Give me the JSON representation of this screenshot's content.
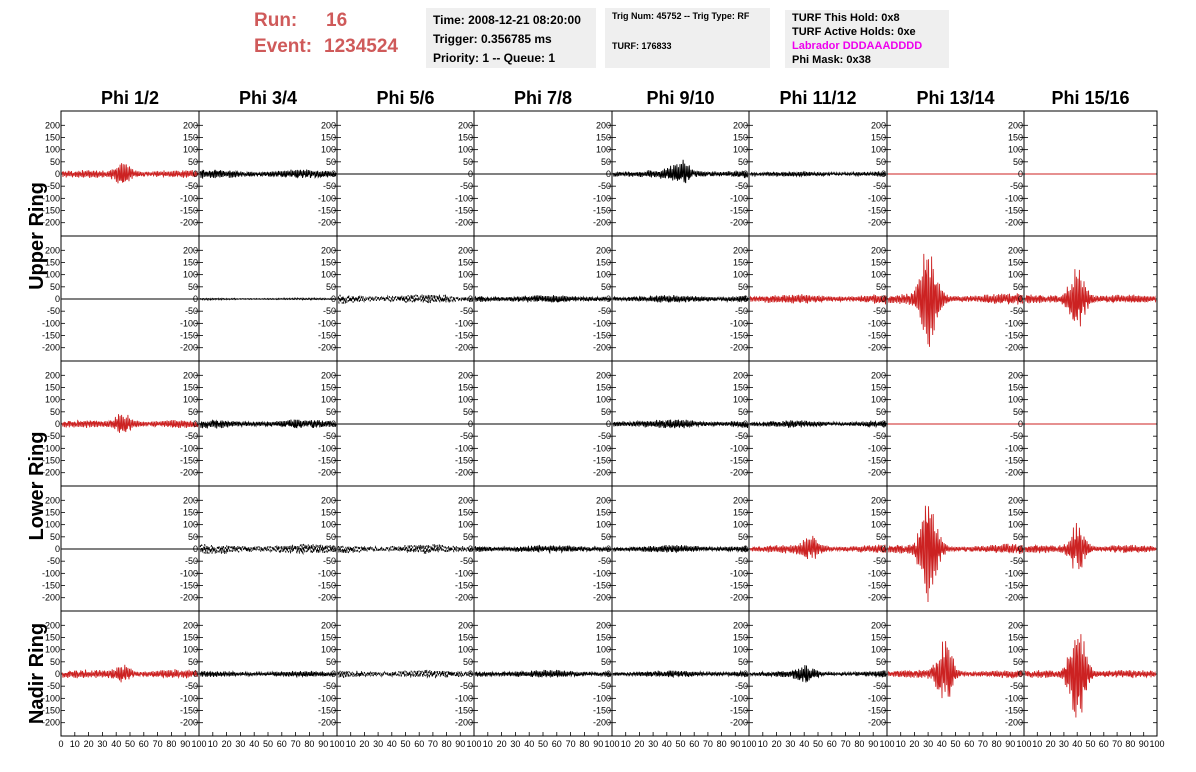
{
  "header": {
    "run_label": "Run:",
    "run_value": "16",
    "event_label": "Event:",
    "event_value": "1234524",
    "time": "Time: 2008-12-21 08:20:00",
    "trigger": "Trigger: 0.356785 ms",
    "priority": "Priority: 1 -- Queue: 1",
    "trig_num": "Trig Num: 45752 -- Trig Type: RF",
    "turf_id": "TURF: 176833",
    "turf_hold": "TURF This Hold: 0x8",
    "turf_active": "TURF Active Holds: 0xe",
    "labrador": "Labrador DDDAAADDDD",
    "phi_mask": "Phi Mask: 0x38"
  },
  "colors": {
    "run_text": "#cf5a5a",
    "labrador_text": "#ee00ee",
    "trace_red": "#cc2222",
    "trace_black": "#000000"
  },
  "chart_data": {
    "type": "line",
    "columns": [
      "Phi 1/2",
      "Phi 3/4",
      "Phi 5/6",
      "Phi 7/8",
      "Phi 9/10",
      "Phi 11/12",
      "Phi 13/14",
      "Phi 15/16"
    ],
    "ring_labels": [
      "Upper Ring",
      "Lower Ring",
      "Nadir Ring"
    ],
    "y_ticks": [
      200,
      150,
      100,
      50,
      0,
      -50,
      -100,
      -150,
      -200
    ],
    "y_range": [
      -230,
      230
    ],
    "x_range": [
      0,
      100
    ],
    "x_tick_labels": [
      "0",
      "10",
      "20",
      "30",
      "40",
      "50",
      "60",
      "70",
      "80",
      "90",
      "100"
    ],
    "panels": [
      [
        {
          "color": "red",
          "amp": 18,
          "burst": 45,
          "peak": 45,
          "style": "solid"
        },
        {
          "color": "black",
          "amp": 20,
          "burst": 0,
          "peak": 0,
          "style": "solid"
        },
        {
          "color": "black",
          "amp": 0,
          "burst": 0,
          "peak": 0,
          "style": "flat"
        },
        {
          "color": "black",
          "amp": 0,
          "burst": 0,
          "peak": 0,
          "style": "flat"
        },
        {
          "color": "black",
          "amp": 22,
          "burst": 45,
          "peak": 50,
          "style": "solid"
        },
        {
          "color": "black",
          "amp": 12,
          "burst": 0,
          "peak": 0,
          "style": "solid"
        },
        {
          "color": "red",
          "amp": 0,
          "burst": 0,
          "peak": 0,
          "style": "flat"
        },
        {
          "color": "red",
          "amp": 0,
          "burst": 0,
          "peak": 0,
          "style": "flat"
        }
      ],
      [
        {
          "color": "black",
          "amp": 0,
          "burst": 0,
          "peak": 0,
          "style": "flat"
        },
        {
          "color": "black",
          "amp": 4,
          "burst": 0,
          "peak": 0,
          "style": "solid"
        },
        {
          "color": "black",
          "amp": 22,
          "burst": 0,
          "peak": 0,
          "style": "dashed"
        },
        {
          "color": "black",
          "amp": 18,
          "burst": 0,
          "peak": 0,
          "style": "solid"
        },
        {
          "color": "black",
          "amp": 18,
          "burst": 0,
          "peak": 0,
          "style": "solid"
        },
        {
          "color": "red",
          "amp": 22,
          "burst": 0,
          "peak": 0,
          "style": "solid"
        },
        {
          "color": "red",
          "amp": 25,
          "burst": 210,
          "peak": 30,
          "style": "solid"
        },
        {
          "color": "red",
          "amp": 20,
          "burst": 130,
          "peak": 40,
          "style": "solid"
        }
      ],
      [
        {
          "color": "red",
          "amp": 18,
          "burst": 40,
          "peak": 45,
          "style": "solid"
        },
        {
          "color": "black",
          "amp": 20,
          "burst": 0,
          "peak": 0,
          "style": "solid"
        },
        {
          "color": "black",
          "amp": 0,
          "burst": 0,
          "peak": 0,
          "style": "flat"
        },
        {
          "color": "black",
          "amp": 0,
          "burst": 0,
          "peak": 0,
          "style": "flat"
        },
        {
          "color": "black",
          "amp": 20,
          "burst": 0,
          "peak": 0,
          "style": "solid"
        },
        {
          "color": "black",
          "amp": 16,
          "burst": 0,
          "peak": 0,
          "style": "solid"
        },
        {
          "color": "red",
          "amp": 0,
          "burst": 0,
          "peak": 0,
          "style": "flat"
        },
        {
          "color": "red",
          "amp": 0,
          "burst": 0,
          "peak": 0,
          "style": "flat"
        }
      ],
      [
        {
          "color": "black",
          "amp": 0,
          "burst": 0,
          "peak": 0,
          "style": "flat"
        },
        {
          "color": "black",
          "amp": 24,
          "burst": 0,
          "peak": 0,
          "style": "dashed"
        },
        {
          "color": "black",
          "amp": 22,
          "burst": 0,
          "peak": 0,
          "style": "dashed"
        },
        {
          "color": "black",
          "amp": 18,
          "burst": 0,
          "peak": 0,
          "style": "solid"
        },
        {
          "color": "black",
          "amp": 18,
          "burst": 0,
          "peak": 0,
          "style": "solid"
        },
        {
          "color": "red",
          "amp": 20,
          "burst": 40,
          "peak": 45,
          "style": "solid"
        },
        {
          "color": "red",
          "amp": 22,
          "burst": 200,
          "peak": 30,
          "style": "solid"
        },
        {
          "color": "red",
          "amp": 18,
          "burst": 100,
          "peak": 40,
          "style": "solid"
        }
      ],
      [
        {
          "color": "red",
          "amp": 20,
          "burst": 30,
          "peak": 45,
          "style": "solid"
        },
        {
          "color": "black",
          "amp": 14,
          "burst": 0,
          "peak": 0,
          "style": "solid"
        },
        {
          "color": "black",
          "amp": 20,
          "burst": 0,
          "peak": 0,
          "style": "dashed"
        },
        {
          "color": "black",
          "amp": 18,
          "burst": 0,
          "peak": 0,
          "style": "solid"
        },
        {
          "color": "black",
          "amp": 16,
          "burst": 0,
          "peak": 0,
          "style": "solid"
        },
        {
          "color": "black",
          "amp": 14,
          "burst": 30,
          "peak": 40,
          "style": "solid"
        },
        {
          "color": "red",
          "amp": 18,
          "burst": 130,
          "peak": 42,
          "style": "solid"
        },
        {
          "color": "red",
          "amp": 18,
          "burst": 230,
          "peak": 40,
          "style": "solid"
        }
      ]
    ]
  }
}
